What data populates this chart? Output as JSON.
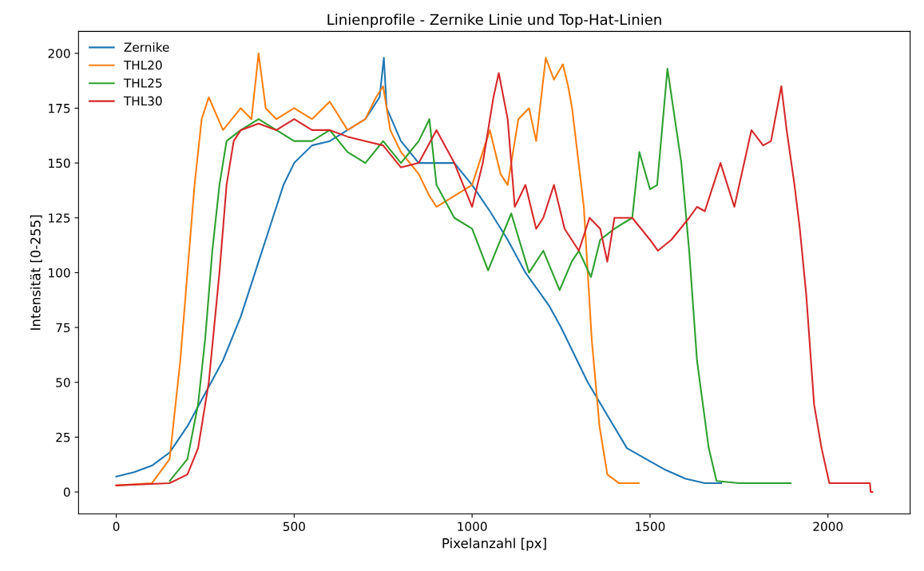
{
  "chart_data": {
    "type": "line",
    "title": "Linienprofile - Zernike Linie und Top-Hat-Linien",
    "xlabel": "Pixelanzahl [px]",
    "ylabel": "Intensität [0-255]",
    "xlim": [
      -106,
      2231
    ],
    "ylim": [
      -10,
      210
    ],
    "xticks": [
      0,
      500,
      1000,
      1500,
      2000
    ],
    "yticks": [
      0,
      25,
      50,
      75,
      100,
      125,
      150,
      175,
      200
    ],
    "grid": false,
    "legend": "top left",
    "marker": "none",
    "line_style": "solid",
    "series": [
      {
        "name": "Zernike",
        "color": "#1f77b4",
        "x": [
          0,
          50,
          100,
          150,
          200,
          250,
          300,
          350,
          400,
          430,
          470,
          500,
          550,
          600,
          650,
          700,
          740,
          752,
          760,
          800,
          850,
          900,
          950,
          1000,
          1050,
          1100,
          1150,
          1216,
          1250,
          1325,
          1380,
          1435,
          1500,
          1544,
          1600,
          1654,
          1700
        ],
        "values": [
          7,
          9,
          12,
          18,
          30,
          45,
          60,
          80,
          105,
          120,
          140,
          150,
          158,
          160,
          165,
          170,
          180,
          198,
          175,
          160,
          150,
          150,
          150,
          140,
          128,
          115,
          100,
          85,
          75,
          50,
          35,
          20,
          14,
          10,
          6,
          4,
          4
        ]
      },
      {
        "name": "THL20",
        "color": "#ff7f0e",
        "x": [
          0,
          100,
          150,
          180,
          200,
          220,
          240,
          260,
          300,
          350,
          380,
          400,
          420,
          450,
          500,
          550,
          600,
          650,
          700,
          730,
          750,
          770,
          800,
          850,
          880,
          900,
          950,
          1000,
          1030,
          1050,
          1080,
          1100,
          1130,
          1160,
          1180,
          1207,
          1230,
          1255,
          1270,
          1281,
          1314,
          1336,
          1358,
          1380,
          1413,
          1468
        ],
        "values": [
          3,
          4,
          15,
          60,
          100,
          140,
          170,
          180,
          165,
          175,
          170,
          200,
          175,
          170,
          175,
          170,
          178,
          165,
          170,
          180,
          185,
          165,
          155,
          145,
          135,
          130,
          135,
          140,
          155,
          165,
          145,
          140,
          170,
          175,
          160,
          198,
          188,
          195,
          185,
          175,
          130,
          70,
          30,
          8,
          4,
          4
        ]
      },
      {
        "name": "THL25",
        "color": "#2ca02c",
        "x": [
          150,
          200,
          230,
          250,
          270,
          290,
          310,
          350,
          400,
          450,
          500,
          550,
          600,
          650,
          700,
          750,
          800,
          850,
          880,
          900,
          950,
          1000,
          1045,
          1080,
          1110,
          1160,
          1200,
          1246,
          1280,
          1300,
          1334,
          1360,
          1400,
          1450,
          1470,
          1500,
          1520,
          1549,
          1588,
          1610,
          1632,
          1665,
          1687,
          1750,
          1895
        ],
        "values": [
          5,
          15,
          40,
          70,
          110,
          140,
          160,
          165,
          170,
          165,
          160,
          160,
          165,
          155,
          150,
          160,
          150,
          160,
          170,
          140,
          125,
          120,
          101,
          115,
          127,
          100,
          110,
          92,
          105,
          110,
          98,
          115,
          120,
          125,
          155,
          138,
          140,
          193,
          150,
          110,
          60,
          20,
          5,
          4,
          4
        ]
      },
      {
        "name": "THL30",
        "color": "#d62728",
        "x": [
          0,
          150,
          200,
          230,
          260,
          290,
          310,
          330,
          350,
          400,
          450,
          500,
          550,
          600,
          650,
          700,
          750,
          800,
          850,
          900,
          950,
          1000,
          1030,
          1060,
          1075,
          1100,
          1120,
          1150,
          1180,
          1200,
          1230,
          1260,
          1300,
          1330,
          1360,
          1380,
          1400,
          1450,
          1500,
          1522,
          1560,
          1610,
          1632,
          1654,
          1698,
          1737,
          1785,
          1818,
          1840,
          1869,
          1884,
          1906,
          1921,
          1939,
          1961,
          1982,
          2004,
          2118,
          2120,
          2125
        ],
        "values": [
          3,
          4,
          8,
          20,
          50,
          100,
          140,
          160,
          165,
          168,
          165,
          170,
          165,
          165,
          162,
          160,
          158,
          148,
          150,
          165,
          150,
          130,
          150,
          180,
          191,
          170,
          130,
          140,
          120,
          125,
          140,
          120,
          110,
          125,
          120,
          105,
          125,
          125,
          115,
          110,
          115,
          125,
          130,
          128,
          150,
          130,
          165,
          158,
          160,
          185,
          165,
          140,
          120,
          90,
          40,
          20,
          4,
          4,
          0,
          0
        ]
      }
    ]
  }
}
